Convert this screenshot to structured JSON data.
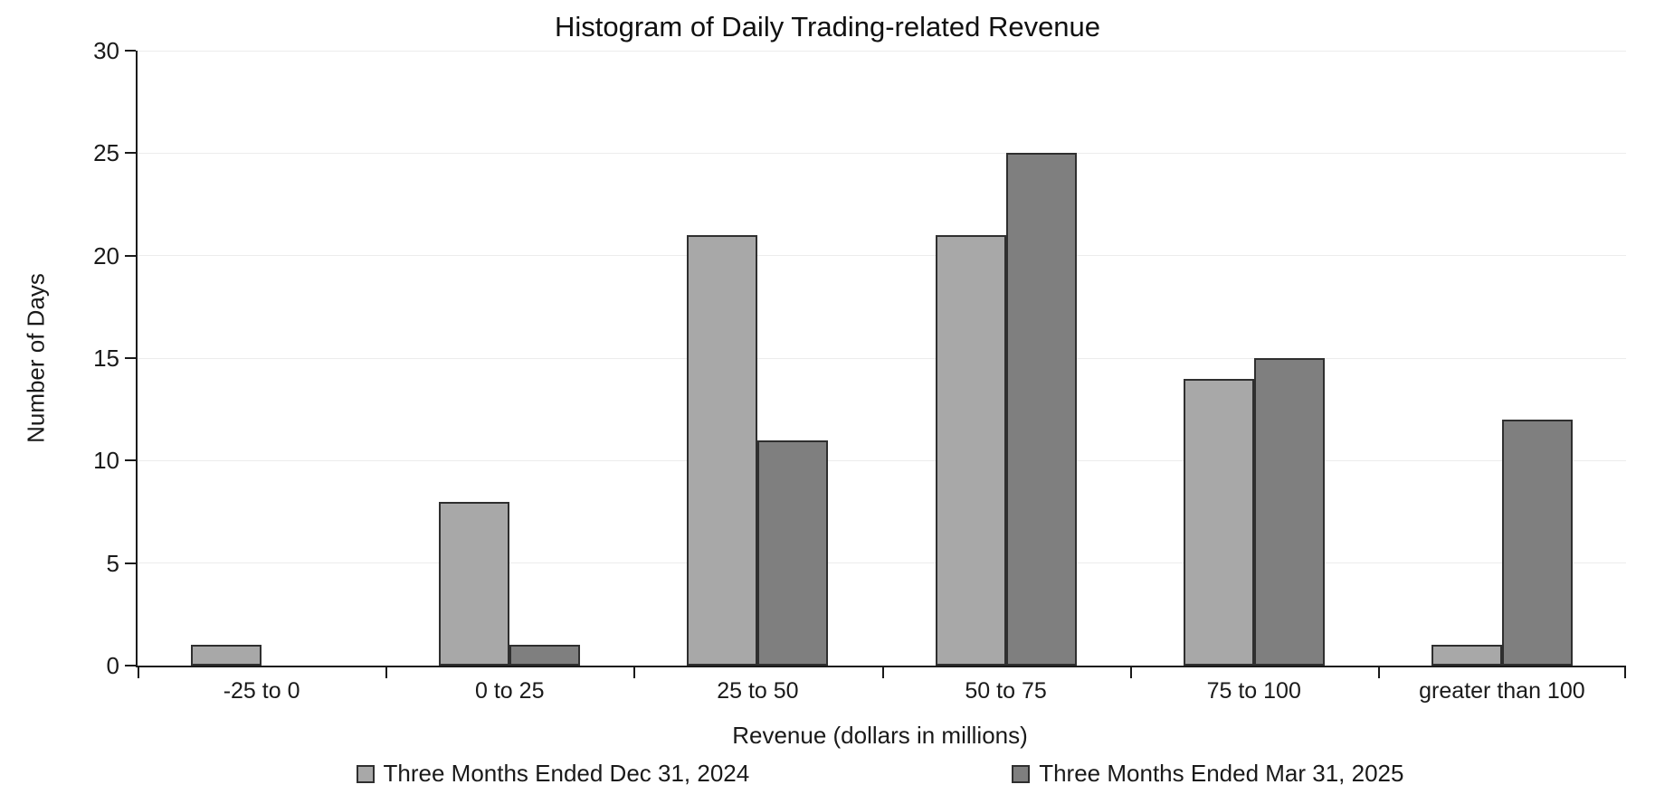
{
  "chart_data": {
    "type": "bar",
    "title": "Histogram of Daily Trading-related Revenue",
    "xlabel": "Revenue (dollars in millions)",
    "ylabel": "Number of Days",
    "categories": [
      "-25 to 0",
      "0 to 25",
      "25 to 50",
      "50 to 75",
      "75 to 100",
      "greater than 100"
    ],
    "series": [
      {
        "name": "Three Months Ended Dec 31, 2024",
        "color": "#a8a8a8",
        "values": [
          1,
          8,
          21,
          21,
          14,
          1
        ]
      },
      {
        "name": "Three Months Ended Mar 31, 2025",
        "color": "#7f7f7f",
        "values": [
          0,
          1,
          11,
          25,
          15,
          12
        ]
      }
    ],
    "ylim": [
      0,
      30
    ],
    "ytick_step": 5,
    "grid": true,
    "legend_position": "bottom",
    "axis_color": "#1a1a1a",
    "bar_border_color": "#2f2f2f"
  }
}
